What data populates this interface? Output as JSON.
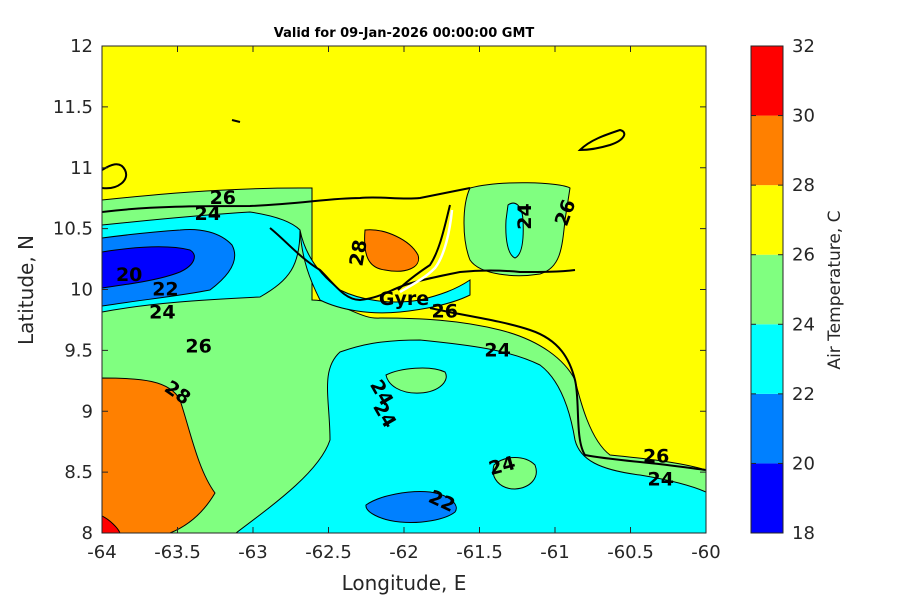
{
  "chart_data": {
    "type": "heatmap",
    "title": "Valid for 09-Jan-2026 00:00:00 GMT",
    "xlabel": "Longitude, E",
    "ylabel": "Latitude, N",
    "xlim": [
      -64,
      -60
    ],
    "ylim": [
      8,
      12
    ],
    "xticks": [
      -64,
      -63.5,
      -63,
      -62.5,
      -62,
      -61.5,
      -61,
      -60.5,
      -60
    ],
    "xtick_labels": [
      "-64",
      "-63.5",
      "-63",
      "-62.5",
      "-62",
      "-61.5",
      "-61",
      "-60.5",
      "-60"
    ],
    "yticks": [
      8,
      8.5,
      9,
      9.5,
      10,
      10.5,
      11,
      11.5,
      12
    ],
    "ytick_labels": [
      "8",
      "8.5",
      "9",
      "9.5",
      "10",
      "10.5",
      "11",
      "11.5",
      "12"
    ],
    "colorbar": {
      "label": "Air Temperature, C",
      "levels": [
        18,
        20,
        22,
        24,
        26,
        28,
        30,
        32
      ],
      "level_labels": [
        "18",
        "20",
        "22",
        "24",
        "26",
        "28",
        "30",
        "32"
      ],
      "colors": [
        "#0000ff",
        "#0080ff",
        "#00ffff",
        "#80ff80",
        "#ffff00",
        "#ff8000",
        "#ff0000",
        "#800000"
      ]
    },
    "contour_labels": [
      {
        "text": "20",
        "lon": -63.82,
        "lat": 10.12,
        "rot": 0
      },
      {
        "text": "22",
        "lon": -63.58,
        "lat": 10.0,
        "rot": 0
      },
      {
        "text": "24",
        "lon": -63.6,
        "lat": 9.81,
        "rot": 0
      },
      {
        "text": "24",
        "lon": -63.3,
        "lat": 10.62,
        "rot": 0
      },
      {
        "text": "26",
        "lon": -63.2,
        "lat": 10.75,
        "rot": 0
      },
      {
        "text": "26",
        "lon": -63.36,
        "lat": 9.53,
        "rot": 0
      },
      {
        "text": "28",
        "lon": -63.5,
        "lat": 9.15,
        "rot": 35
      },
      {
        "text": "28",
        "lon": -62.3,
        "lat": 10.3,
        "rot": -80
      },
      {
        "text": "24",
        "lon": -62.15,
        "lat": 9.15,
        "rot": 60
      },
      {
        "text": "24",
        "lon": -62.13,
        "lat": 8.97,
        "rot": 60
      },
      {
        "text": "24",
        "lon": -61.38,
        "lat": 9.5,
        "rot": 0
      },
      {
        "text": "26",
        "lon": -61.73,
        "lat": 9.82,
        "rot": 0
      },
      {
        "text": "24",
        "lon": -61.2,
        "lat": 10.6,
        "rot": -90
      },
      {
        "text": "26",
        "lon": -60.93,
        "lat": 10.63,
        "rot": -70
      },
      {
        "text": "24",
        "lon": -61.35,
        "lat": 8.55,
        "rot": -15
      },
      {
        "text": "22",
        "lon": -61.75,
        "lat": 8.26,
        "rot": 25
      },
      {
        "text": "26",
        "lon": -60.33,
        "lat": 8.63,
        "rot": 0
      },
      {
        "text": "24",
        "lon": -60.3,
        "lat": 8.44,
        "rot": 0
      }
    ],
    "annotations": [
      {
        "text": "Gyre",
        "lon": -62.0,
        "lat": 9.92
      }
    ],
    "grid": false,
    "legend": "colorbar-right"
  },
  "colors": {
    "outline": "#000000",
    "axis": "#262626",
    "background": "#ffffff"
  }
}
